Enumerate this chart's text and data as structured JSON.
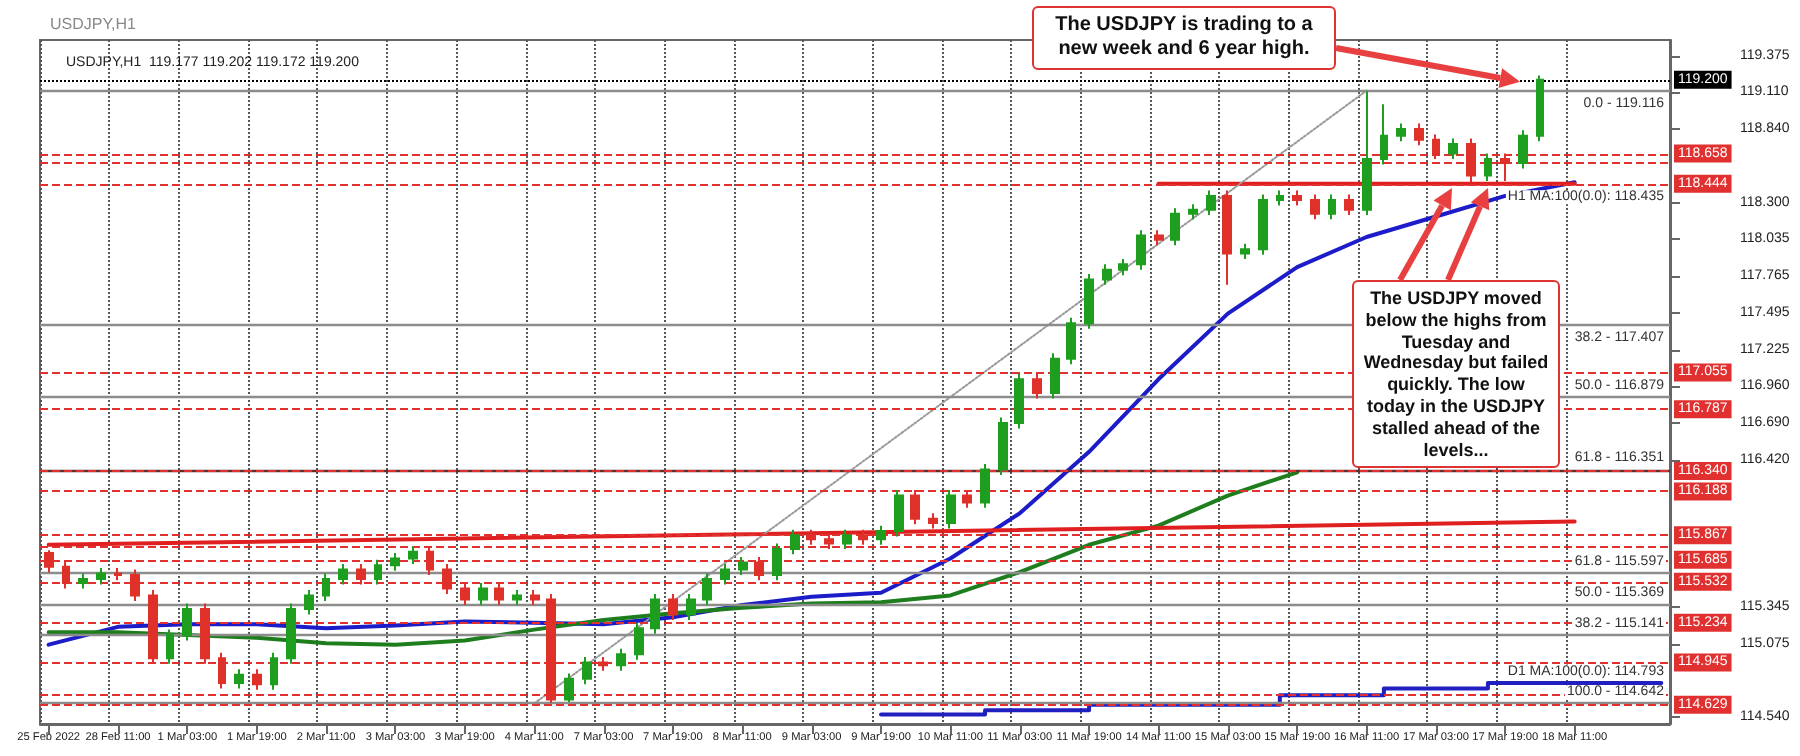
{
  "chart_data": {
    "type": "candlestick",
    "title": "USDJPY,H1",
    "subtitle": "USDJPY,H1  119.177 119.202 119.172 119.200",
    "categories": [
      "25 Feb 2022",
      null,
      null,
      null,
      "28 Feb 11:00",
      null,
      null,
      null,
      "1 Mar 03:00",
      null,
      null,
      null,
      "1 Mar 19:00",
      null,
      null,
      null,
      "2 Mar 11:00",
      null,
      null,
      null,
      "3 Mar 03:00",
      null,
      null,
      null,
      "3 Mar 19:00",
      null,
      null,
      null,
      "4 Mar 11:00",
      null,
      null,
      null,
      "7 Mar 03:00",
      null,
      null,
      null,
      "7 Mar 19:00",
      null,
      null,
      null,
      "8 Mar 11:00",
      null,
      null,
      null,
      "9 Mar 03:00",
      null,
      null,
      null,
      "9 Mar 19:00",
      null,
      null,
      null,
      "10 Mar 11:00",
      null,
      null,
      null,
      "11 Mar 03:00",
      null,
      null,
      null,
      "11 Mar 19:00",
      null,
      null,
      null,
      "14 Mar 11:00",
      null,
      null,
      null,
      "15 Mar 03:00",
      null,
      null,
      null,
      "15 Mar 19:00",
      null,
      null,
      null,
      "16 Mar 11:00",
      null,
      null,
      null,
      "17 Mar 03:00",
      null,
      null,
      null,
      "17 Mar 19:00",
      null,
      null,
      null,
      "18 Mar 11:00",
      null,
      null,
      null,
      null,
      null
    ],
    "series": [
      {
        "ohlc": [
          [
            115.74,
            115.76,
            115.6,
            115.64
          ],
          [
            115.64,
            115.68,
            115.48,
            115.52
          ],
          [
            115.52,
            115.59,
            115.48,
            115.55
          ],
          [
            115.55,
            115.63,
            115.51,
            115.59
          ],
          [
            115.59,
            115.63,
            115.54,
            115.58
          ],
          [
            115.58,
            115.62,
            115.39,
            115.43
          ],
          [
            115.43,
            115.47,
            114.93,
            114.97
          ],
          [
            114.97,
            115.18,
            114.93,
            115.14
          ],
          [
            115.14,
            115.37,
            115.1,
            115.33
          ],
          [
            115.33,
            115.37,
            114.93,
            114.97
          ],
          [
            114.97,
            115.01,
            114.75,
            114.79
          ],
          [
            114.79,
            114.89,
            114.75,
            114.85
          ],
          [
            114.85,
            114.89,
            114.74,
            114.78
          ],
          [
            114.78,
            115.01,
            114.74,
            114.97
          ],
          [
            114.97,
            115.37,
            114.93,
            115.33
          ],
          [
            115.33,
            115.47,
            115.29,
            115.43
          ],
          [
            115.43,
            115.59,
            115.39,
            115.55
          ],
          [
            115.55,
            115.66,
            115.51,
            115.62
          ],
          [
            115.62,
            115.66,
            115.51,
            115.55
          ],
          [
            115.55,
            115.69,
            115.51,
            115.65
          ],
          [
            115.65,
            115.74,
            115.61,
            115.7
          ],
          [
            115.7,
            115.79,
            115.66,
            115.75
          ],
          [
            115.75,
            115.79,
            115.58,
            115.62
          ],
          [
            115.62,
            115.66,
            115.44,
            115.48
          ],
          [
            115.48,
            115.52,
            115.36,
            115.4
          ],
          [
            115.4,
            115.52,
            115.36,
            115.48
          ],
          [
            115.48,
            115.52,
            115.36,
            115.4
          ],
          [
            115.4,
            115.47,
            115.36,
            115.43
          ],
          [
            115.43,
            115.47,
            115.36,
            115.4
          ],
          [
            115.4,
            115.44,
            114.645,
            114.67
          ],
          [
            114.67,
            114.86,
            114.65,
            114.82
          ],
          [
            114.82,
            114.98,
            114.78,
            114.94
          ],
          [
            114.94,
            114.98,
            114.88,
            114.92
          ],
          [
            114.92,
            115.04,
            114.88,
            115.0
          ],
          [
            115.0,
            115.23,
            114.96,
            115.19
          ],
          [
            115.19,
            115.44,
            115.15,
            115.4
          ],
          [
            115.4,
            115.44,
            115.25,
            115.29
          ],
          [
            115.29,
            115.44,
            115.25,
            115.4
          ],
          [
            115.4,
            115.59,
            115.36,
            115.55
          ],
          [
            115.55,
            115.66,
            115.51,
            115.62
          ],
          [
            115.62,
            115.71,
            115.58,
            115.67
          ],
          [
            115.67,
            115.71,
            115.54,
            115.58
          ],
          [
            115.58,
            115.81,
            115.54,
            115.77
          ],
          [
            115.77,
            115.91,
            115.73,
            115.87
          ],
          [
            115.87,
            115.91,
            115.8,
            115.84
          ],
          [
            115.84,
            115.88,
            115.77,
            115.81
          ],
          [
            115.81,
            115.91,
            115.77,
            115.87
          ],
          [
            115.87,
            115.91,
            115.8,
            115.84
          ],
          [
            115.84,
            115.94,
            115.8,
            115.9
          ],
          [
            115.9,
            116.2,
            115.86,
            116.16
          ],
          [
            116.16,
            116.2,
            115.95,
            115.99
          ],
          [
            115.99,
            116.03,
            115.92,
            115.96
          ],
          [
            115.96,
            116.2,
            115.92,
            116.16
          ],
          [
            116.16,
            116.2,
            116.07,
            116.11
          ],
          [
            116.11,
            116.39,
            116.07,
            116.35
          ],
          [
            116.35,
            116.73,
            116.31,
            116.69
          ],
          [
            116.69,
            117.05,
            116.65,
            117.01
          ],
          [
            117.01,
            117.05,
            116.87,
            116.91
          ],
          [
            116.91,
            117.2,
            116.87,
            117.16
          ],
          [
            117.16,
            117.46,
            117.12,
            117.42
          ],
          [
            117.42,
            117.78,
            117.38,
            117.74
          ],
          [
            117.74,
            117.85,
            117.7,
            117.81
          ],
          [
            117.81,
            117.89,
            117.77,
            117.85
          ],
          [
            117.85,
            118.1,
            117.81,
            118.06
          ],
          [
            118.06,
            118.1,
            117.99,
            118.03
          ],
          [
            118.03,
            118.26,
            117.99,
            118.22
          ],
          [
            118.22,
            118.29,
            118.18,
            118.25
          ],
          [
            118.25,
            118.39,
            118.21,
            118.35
          ],
          [
            118.35,
            118.39,
            117.7,
            117.93
          ],
          [
            117.93,
            118.0,
            117.89,
            117.96
          ],
          [
            117.96,
            118.36,
            117.92,
            118.32
          ],
          [
            118.32,
            118.39,
            118.28,
            118.35
          ],
          [
            118.35,
            118.39,
            118.28,
            118.32
          ],
          [
            118.32,
            118.36,
            118.18,
            118.22
          ],
          [
            118.22,
            118.36,
            118.18,
            118.32
          ],
          [
            118.32,
            118.36,
            118.21,
            118.25
          ],
          [
            118.25,
            119.116,
            118.21,
            118.62
          ],
          [
            118.62,
            119.02,
            118.58,
            118.79
          ],
          [
            118.79,
            118.88,
            118.75,
            118.84
          ],
          [
            118.84,
            118.88,
            118.72,
            118.76
          ],
          [
            118.76,
            118.8,
            118.62,
            118.66
          ],
          [
            118.66,
            118.77,
            118.62,
            118.73
          ],
          [
            118.73,
            118.77,
            118.45,
            118.5
          ],
          [
            118.5,
            118.66,
            118.46,
            118.62
          ],
          [
            118.62,
            118.66,
            118.46,
            118.59
          ],
          [
            118.59,
            118.83,
            118.55,
            118.79
          ],
          [
            118.79,
            119.23,
            118.75,
            119.2
          ],
          null,
          null,
          null,
          null,
          null,
          null,
          null
        ],
        "colors": [
          "#e0302a",
          "#e0302a",
          "#1e9e1e",
          "#1e9e1e",
          "#e0302a",
          "#e0302a",
          "#e0302a",
          "#1e9e1e",
          "#1e9e1e",
          "#e0302a",
          "#e0302a",
          "#1e9e1e",
          "#e0302a",
          "#1e9e1e",
          "#1e9e1e",
          "#1e9e1e",
          "#1e9e1e",
          "#1e9e1e",
          "#e0302a",
          "#1e9e1e",
          "#1e9e1e",
          "#1e9e1e",
          "#e0302a",
          "#e0302a",
          "#e0302a",
          "#1e9e1e",
          "#e0302a",
          "#1e9e1e",
          "#e0302a",
          "#e0302a",
          "#1e9e1e",
          "#1e9e1e",
          "#e0302a",
          "#1e9e1e",
          "#1e9e1e",
          "#1e9e1e",
          "#e0302a",
          "#1e9e1e",
          "#1e9e1e",
          "#1e9e1e",
          "#1e9e1e",
          "#e0302a",
          "#1e9e1e",
          "#1e9e1e",
          "#e0302a",
          "#e0302a",
          "#1e9e1e",
          "#e0302a",
          "#1e9e1e",
          "#1e9e1e",
          "#e0302a",
          "#e0302a",
          "#1e9e1e",
          "#e0302a",
          "#1e9e1e",
          "#1e9e1e",
          "#1e9e1e",
          "#e0302a",
          "#1e9e1e",
          "#1e9e1e",
          "#1e9e1e",
          "#1e9e1e",
          "#1e9e1e",
          "#1e9e1e",
          "#e0302a",
          "#1e9e1e",
          "#1e9e1e",
          "#1e9e1e",
          "#e0302a",
          "#1e9e1e",
          "#1e9e1e",
          "#1e9e1e",
          "#e0302a",
          "#e0302a",
          "#1e9e1e",
          "#e0302a",
          "#1e9e1e",
          "#1e9e1e",
          "#1e9e1e",
          "#e0302a",
          "#e0302a",
          "#1e9e1e",
          "#e0302a",
          "#1e9e1e",
          "#e0302a",
          "#1e9e1e",
          "#1e9e1e",
          null,
          null,
          null,
          null,
          null,
          null,
          null
        ]
      },
      {
        "type": "line",
        "color": "#1c1cc8",
        "x": [
          "25 Feb 2022",
          "28 Feb 11:00",
          "1 Mar 03:00",
          "1 Mar 19:00",
          "2 Mar 11:00",
          "3 Mar 03:00",
          "3 Mar 19:00",
          "4 Mar 11:00",
          "7 Mar 03:00",
          "7 Mar 19:00",
          "8 Mar 11:00",
          "9 Mar 03:00",
          "9 Mar 19:00",
          "10 Mar 11:00",
          "11 Mar 03:00",
          "11 Mar 19:00",
          "14 Mar 11:00",
          "15 Mar 03:00",
          "15 Mar 19:00",
          "16 Mar 11:00",
          "17 Mar 03:00",
          "17 Mar 19:00",
          "18 Mar 11:00"
        ],
        "values": [
          115.07,
          115.2,
          115.22,
          115.22,
          115.19,
          115.21,
          115.24,
          115.23,
          115.22,
          115.27,
          115.36,
          115.42,
          115.45,
          115.7,
          116.03,
          116.48,
          117.01,
          117.49,
          117.83,
          118.05,
          118.2,
          118.35,
          118.45
        ]
      },
      {
        "type": "line",
        "color": "#1e7e1e",
        "x": [
          "25 Feb 2022",
          "28 Feb 11:00",
          "1 Mar 03:00",
          "1 Mar 19:00",
          "2 Mar 11:00",
          "3 Mar 03:00",
          "3 Mar 19:00",
          "4 Mar 11:00",
          "7 Mar 03:00",
          "7 Mar 19:00",
          "8 Mar 11:00",
          "9 Mar 03:00",
          "9 Mar 19:00",
          "10 Mar 11:00",
          "11 Mar 03:00",
          "11 Mar 19:00",
          "14 Mar 11:00",
          "15 Mar 03:00",
          "15 Mar 19:00"
        ],
        "values": [
          115.16,
          115.16,
          115.14,
          115.12,
          115.08,
          115.07,
          115.1,
          115.18,
          115.25,
          115.3,
          115.34,
          115.37,
          115.38,
          115.43,
          115.6,
          115.8,
          115.94,
          116.16,
          116.33
        ]
      },
      {
        "type": "line",
        "color": "#e02020",
        "x": [
          "25 Feb 2022",
          "18 Mar 11:00"
        ],
        "values": [
          115.8,
          115.97
        ]
      },
      {
        "type": "line",
        "color": "#e02020",
        "x": [
          "14 Mar 11:00",
          "18 Mar 11:00"
        ],
        "values": [
          118.44,
          118.44
        ]
      },
      {
        "type": "line",
        "color": "#999999",
        "line_style": "dotted",
        "x": [
          "4 Mar 11:00",
          "16 Mar 11:00"
        ],
        "values": [
          114.64,
          119.12
        ]
      },
      {
        "type": "step",
        "color": "#2020c0",
        "values": [
          null,
          null,
          null,
          null,
          null,
          null,
          null,
          null,
          null,
          null,
          null,
          null,
          null,
          null,
          null,
          null,
          null,
          null,
          null,
          null,
          null,
          null,
          null,
          null,
          null,
          null,
          null,
          null,
          null,
          null,
          null,
          null,
          null,
          null,
          null,
          null,
          null,
          null,
          null,
          null,
          null,
          null,
          null,
          null,
          null,
          null,
          null,
          null,
          114.56,
          114.56,
          114.56,
          114.56,
          114.56,
          114.56,
          114.59,
          114.59,
          114.59,
          114.59,
          114.59,
          114.59,
          114.63,
          114.63,
          114.63,
          114.63,
          114.63,
          114.63,
          114.63,
          114.63,
          114.63,
          114.63,
          114.63,
          114.7,
          114.7,
          114.7,
          114.7,
          114.7,
          114.7,
          114.75,
          114.75,
          114.75,
          114.75,
          114.75,
          114.75,
          114.79,
          114.79,
          114.79,
          114.79,
          114.79,
          114.79,
          114.79,
          114.79,
          114.79,
          114.79,
          114.79
        ]
      }
    ],
    "ylim": [
      114.49,
      119.49
    ],
    "yticks": [
      {
        "value": 119.375,
        "label": "119.375"
      },
      {
        "value": 119.11,
        "label": "119.110"
      },
      {
        "value": 118.84,
        "label": "118.840"
      },
      {
        "value": 118.3,
        "label": "118.300"
      },
      {
        "value": 118.035,
        "label": "118.035"
      },
      {
        "value": 117.765,
        "label": "117.765"
      },
      {
        "value": 117.495,
        "label": "117.495"
      },
      {
        "value": 117.225,
        "label": "117.225"
      },
      {
        "value": 116.96,
        "label": "116.960"
      },
      {
        "value": 116.69,
        "label": "116.690"
      },
      {
        "value": 116.42,
        "label": "116.420"
      },
      {
        "value": 115.345,
        "label": "115.345"
      },
      {
        "value": 115.075,
        "label": "115.075"
      },
      {
        "value": 114.54,
        "label": "114.540"
      }
    ],
    "grid": "x",
    "ref_lines": [
      {
        "axis": "y",
        "value": 119.116,
        "label": null,
        "color": "#8c8c8c",
        "line_style": "solid"
      },
      {
        "axis": "y",
        "value": 117.407,
        "label": null,
        "color": "#8c8c8c",
        "line_style": "solid"
      },
      {
        "axis": "y",
        "value": 116.879,
        "label": null,
        "color": "#8c8c8c",
        "line_style": "solid"
      },
      {
        "axis": "y",
        "value": 116.351,
        "label": null,
        "color": "#603030",
        "line_style": "solid"
      },
      {
        "axis": "y",
        "value": 115.597,
        "label": null,
        "color": "#8c8c8c",
        "line_style": "solid"
      },
      {
        "axis": "y",
        "value": 115.369,
        "label": null,
        "color": "#8c8c8c",
        "line_style": "solid"
      },
      {
        "axis": "y",
        "value": 115.141,
        "label": null,
        "color": "#8c8c8c",
        "line_style": "solid"
      },
      {
        "axis": "y",
        "value": 114.642,
        "label": null,
        "color": "#8c8c8c",
        "line_style": "solid"
      },
      {
        "axis": "y",
        "value": 119.2,
        "label": "119.200",
        "color": "#000000",
        "line_style": "dotted"
      },
      {
        "axis": "y",
        "value": 118.658,
        "label": "118.658",
        "color": "#e03030",
        "line_style": "dashed"
      },
      {
        "axis": "y",
        "value": 118.6,
        "label": null,
        "color": "#e03030",
        "line_style": "dashed"
      },
      {
        "axis": "y",
        "value": 118.444,
        "label": "118.444",
        "color": "#e03030",
        "line_style": "dashed"
      },
      {
        "axis": "y",
        "value": 117.055,
        "label": "117.055",
        "color": "#e03030",
        "line_style": "dashed"
      },
      {
        "axis": "y",
        "value": 116.787,
        "label": "116.787",
        "color": "#e03030",
        "line_style": "dashed"
      },
      {
        "axis": "y",
        "value": 116.34,
        "label": "116.340",
        "color": "#e03030",
        "line_style": "dashed"
      },
      {
        "axis": "y",
        "value": 116.188,
        "label": "116.188",
        "color": "#e03030",
        "line_style": "dashed"
      },
      {
        "axis": "y",
        "value": 115.867,
        "label": "115.867",
        "color": "#e03030",
        "line_style": "dashed"
      },
      {
        "axis": "y",
        "value": 115.786,
        "label": null,
        "color": "#e03030",
        "line_style": "dashed"
      },
      {
        "axis": "y",
        "value": 115.685,
        "label": "115.685",
        "color": "#e03030",
        "line_style": "dashed"
      },
      {
        "axis": "y",
        "value": 115.532,
        "label": "115.532",
        "color": "#e03030",
        "line_style": "dashed"
      },
      {
        "axis": "y",
        "value": 115.234,
        "label": "115.234",
        "color": "#e03030",
        "line_style": "dashed"
      },
      {
        "axis": "y",
        "value": 114.945,
        "label": "114.945",
        "color": "#e03030",
        "line_style": "dashed"
      },
      {
        "axis": "y",
        "value": 114.702,
        "label": null,
        "color": "#e03030",
        "line_style": "dashed"
      },
      {
        "axis": "y",
        "value": 114.629,
        "label": "114.629",
        "color": "#e03030",
        "line_style": "dashed"
      }
    ],
    "annotations": [
      {
        "text": "The USDJPY is trading to a new week and 6 year high.",
        "y": 119.2
      },
      {
        "text": "The USDJPY moved below the highs from Tuesday and Wednesday but failed quickly. The low today in the USDJPY stalled ahead of the levels..."
      },
      {
        "text": "H1 MA:100(0.0): 118.435",
        "y": 118.435
      },
      {
        "text": "D1 MA:100(0.0): 114.793",
        "y": 114.793
      },
      {
        "text": "0.0 - 119.116",
        "y": 119.116
      },
      {
        "text": "38.2 - 117.407",
        "y": 117.407
      },
      {
        "text": "50.0 - 116.879",
        "y": 116.879
      },
      {
        "text": "61.8 - 116.351",
        "y": 116.351
      },
      {
        "text": "61.8 - 115.597",
        "y": 115.597
      },
      {
        "text": "50.0 - 115.369",
        "y": 115.369
      },
      {
        "text": "38.2 - 115.141",
        "y": 115.141
      },
      {
        "text": "100.0 - 114.642",
        "y": 114.642
      }
    ]
  }
}
